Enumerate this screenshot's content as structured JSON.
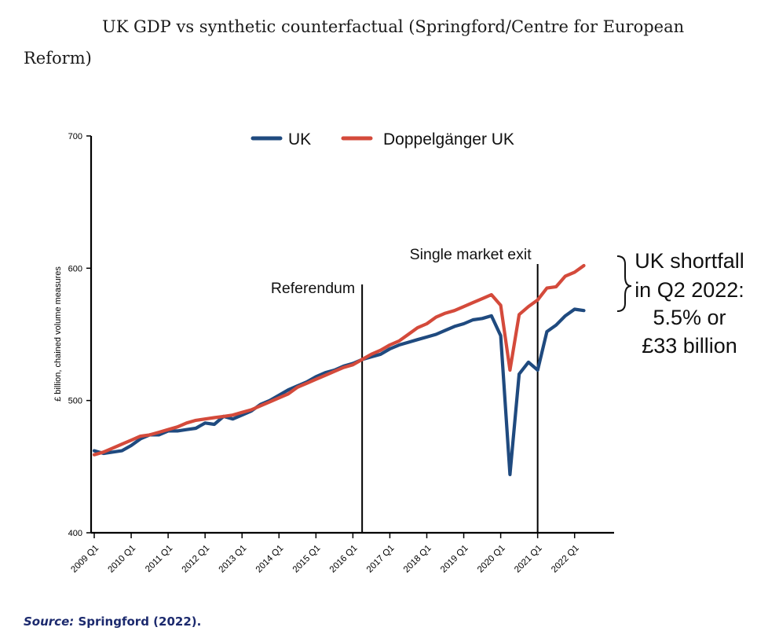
{
  "page": {
    "title": "UK GDP vs synthetic counterfactual (Springford/Centre for European Reform)",
    "source_label": "Source:",
    "source_text": " Springford (2022)."
  },
  "chart_data": {
    "type": "line",
    "title": "",
    "xlabel": "",
    "ylabel": "£ billion, chained volume measures",
    "ylim": [
      400,
      700
    ],
    "yticks": [
      400,
      500,
      600,
      700
    ],
    "xlim": [
      2009.0,
      2022.75
    ],
    "xticks": [
      "2009 Q1",
      "2010 Q1",
      "2011 Q1",
      "2012 Q1",
      "2013 Q1",
      "2014 Q1",
      "2015 Q1",
      "2016 Q1",
      "2017 Q1",
      "2018 Q1",
      "2019 Q1",
      "2020 Q1",
      "2021 Q1",
      "2022 Q1"
    ],
    "grid": false,
    "legend": "top-center",
    "series": [
      {
        "name": "UK",
        "color": "#1f4a7f",
        "points": [
          [
            2009.0,
            462
          ],
          [
            2009.25,
            460
          ],
          [
            2009.5,
            461
          ],
          [
            2009.75,
            462
          ],
          [
            2010.0,
            466
          ],
          [
            2010.25,
            471
          ],
          [
            2010.5,
            474
          ],
          [
            2010.75,
            474
          ],
          [
            2011.0,
            477
          ],
          [
            2011.25,
            477
          ],
          [
            2011.5,
            478
          ],
          [
            2011.75,
            479
          ],
          [
            2012.0,
            483
          ],
          [
            2012.25,
            482
          ],
          [
            2012.5,
            488
          ],
          [
            2012.75,
            486
          ],
          [
            2013.0,
            489
          ],
          [
            2013.25,
            492
          ],
          [
            2013.5,
            497
          ],
          [
            2013.75,
            500
          ],
          [
            2014.0,
            504
          ],
          [
            2014.25,
            508
          ],
          [
            2014.5,
            511
          ],
          [
            2014.75,
            514
          ],
          [
            2015.0,
            518
          ],
          [
            2015.25,
            521
          ],
          [
            2015.5,
            523
          ],
          [
            2015.75,
            526
          ],
          [
            2016.0,
            528
          ],
          [
            2016.25,
            531
          ],
          [
            2016.5,
            533
          ],
          [
            2016.75,
            535
          ],
          [
            2017.0,
            539
          ],
          [
            2017.25,
            542
          ],
          [
            2017.5,
            544
          ],
          [
            2017.75,
            546
          ],
          [
            2018.0,
            548
          ],
          [
            2018.25,
            550
          ],
          [
            2018.5,
            553
          ],
          [
            2018.75,
            556
          ],
          [
            2019.0,
            558
          ],
          [
            2019.25,
            561
          ],
          [
            2019.5,
            562
          ],
          [
            2019.75,
            564
          ],
          [
            2020.0,
            549
          ],
          [
            2020.25,
            444
          ],
          [
            2020.5,
            520
          ],
          [
            2020.75,
            529
          ],
          [
            2021.0,
            523
          ],
          [
            2021.25,
            552
          ],
          [
            2021.5,
            557
          ],
          [
            2021.75,
            564
          ],
          [
            2022.0,
            569
          ],
          [
            2022.25,
            568
          ]
        ]
      },
      {
        "name": "Doppelgänger UK",
        "color": "#d44a3b",
        "points": [
          [
            2009.0,
            459
          ],
          [
            2009.25,
            461
          ],
          [
            2009.5,
            464
          ],
          [
            2009.75,
            467
          ],
          [
            2010.0,
            470
          ],
          [
            2010.25,
            473
          ],
          [
            2010.5,
            474
          ],
          [
            2010.75,
            476
          ],
          [
            2011.0,
            478
          ],
          [
            2011.25,
            480
          ],
          [
            2011.5,
            483
          ],
          [
            2011.75,
            485
          ],
          [
            2012.0,
            486
          ],
          [
            2012.25,
            487
          ],
          [
            2012.5,
            488
          ],
          [
            2012.75,
            489
          ],
          [
            2013.0,
            491
          ],
          [
            2013.25,
            493
          ],
          [
            2013.5,
            496
          ],
          [
            2013.75,
            499
          ],
          [
            2014.0,
            502
          ],
          [
            2014.25,
            505
          ],
          [
            2014.5,
            510
          ],
          [
            2014.75,
            513
          ],
          [
            2015.0,
            516
          ],
          [
            2015.25,
            519
          ],
          [
            2015.5,
            522
          ],
          [
            2015.75,
            525
          ],
          [
            2016.0,
            527
          ],
          [
            2016.25,
            531
          ],
          [
            2016.5,
            535
          ],
          [
            2016.75,
            538
          ],
          [
            2017.0,
            542
          ],
          [
            2017.25,
            545
          ],
          [
            2017.5,
            550
          ],
          [
            2017.75,
            555
          ],
          [
            2018.0,
            558
          ],
          [
            2018.25,
            563
          ],
          [
            2018.5,
            566
          ],
          [
            2018.75,
            568
          ],
          [
            2019.0,
            571
          ],
          [
            2019.25,
            574
          ],
          [
            2019.5,
            577
          ],
          [
            2019.75,
            580
          ],
          [
            2020.0,
            572
          ],
          [
            2020.25,
            523
          ],
          [
            2020.5,
            565
          ],
          [
            2020.75,
            571
          ],
          [
            2021.0,
            576
          ],
          [
            2021.25,
            585
          ],
          [
            2021.5,
            586
          ],
          [
            2021.75,
            594
          ],
          [
            2022.0,
            597
          ],
          [
            2022.25,
            602
          ]
        ]
      }
    ],
    "annotations": [
      {
        "label": "Referendum",
        "x": 2016.25,
        "type": "vertical-line"
      },
      {
        "label": "Single market exit",
        "x": 2021.0,
        "type": "vertical-line"
      },
      {
        "label": "UK shortfall in Q2 2022: 5.5% or £33 billion",
        "lines": [
          "UK shortfall",
          "in Q2 2022:",
          "5.5% or",
          "£33 billion"
        ],
        "type": "brace"
      }
    ]
  }
}
